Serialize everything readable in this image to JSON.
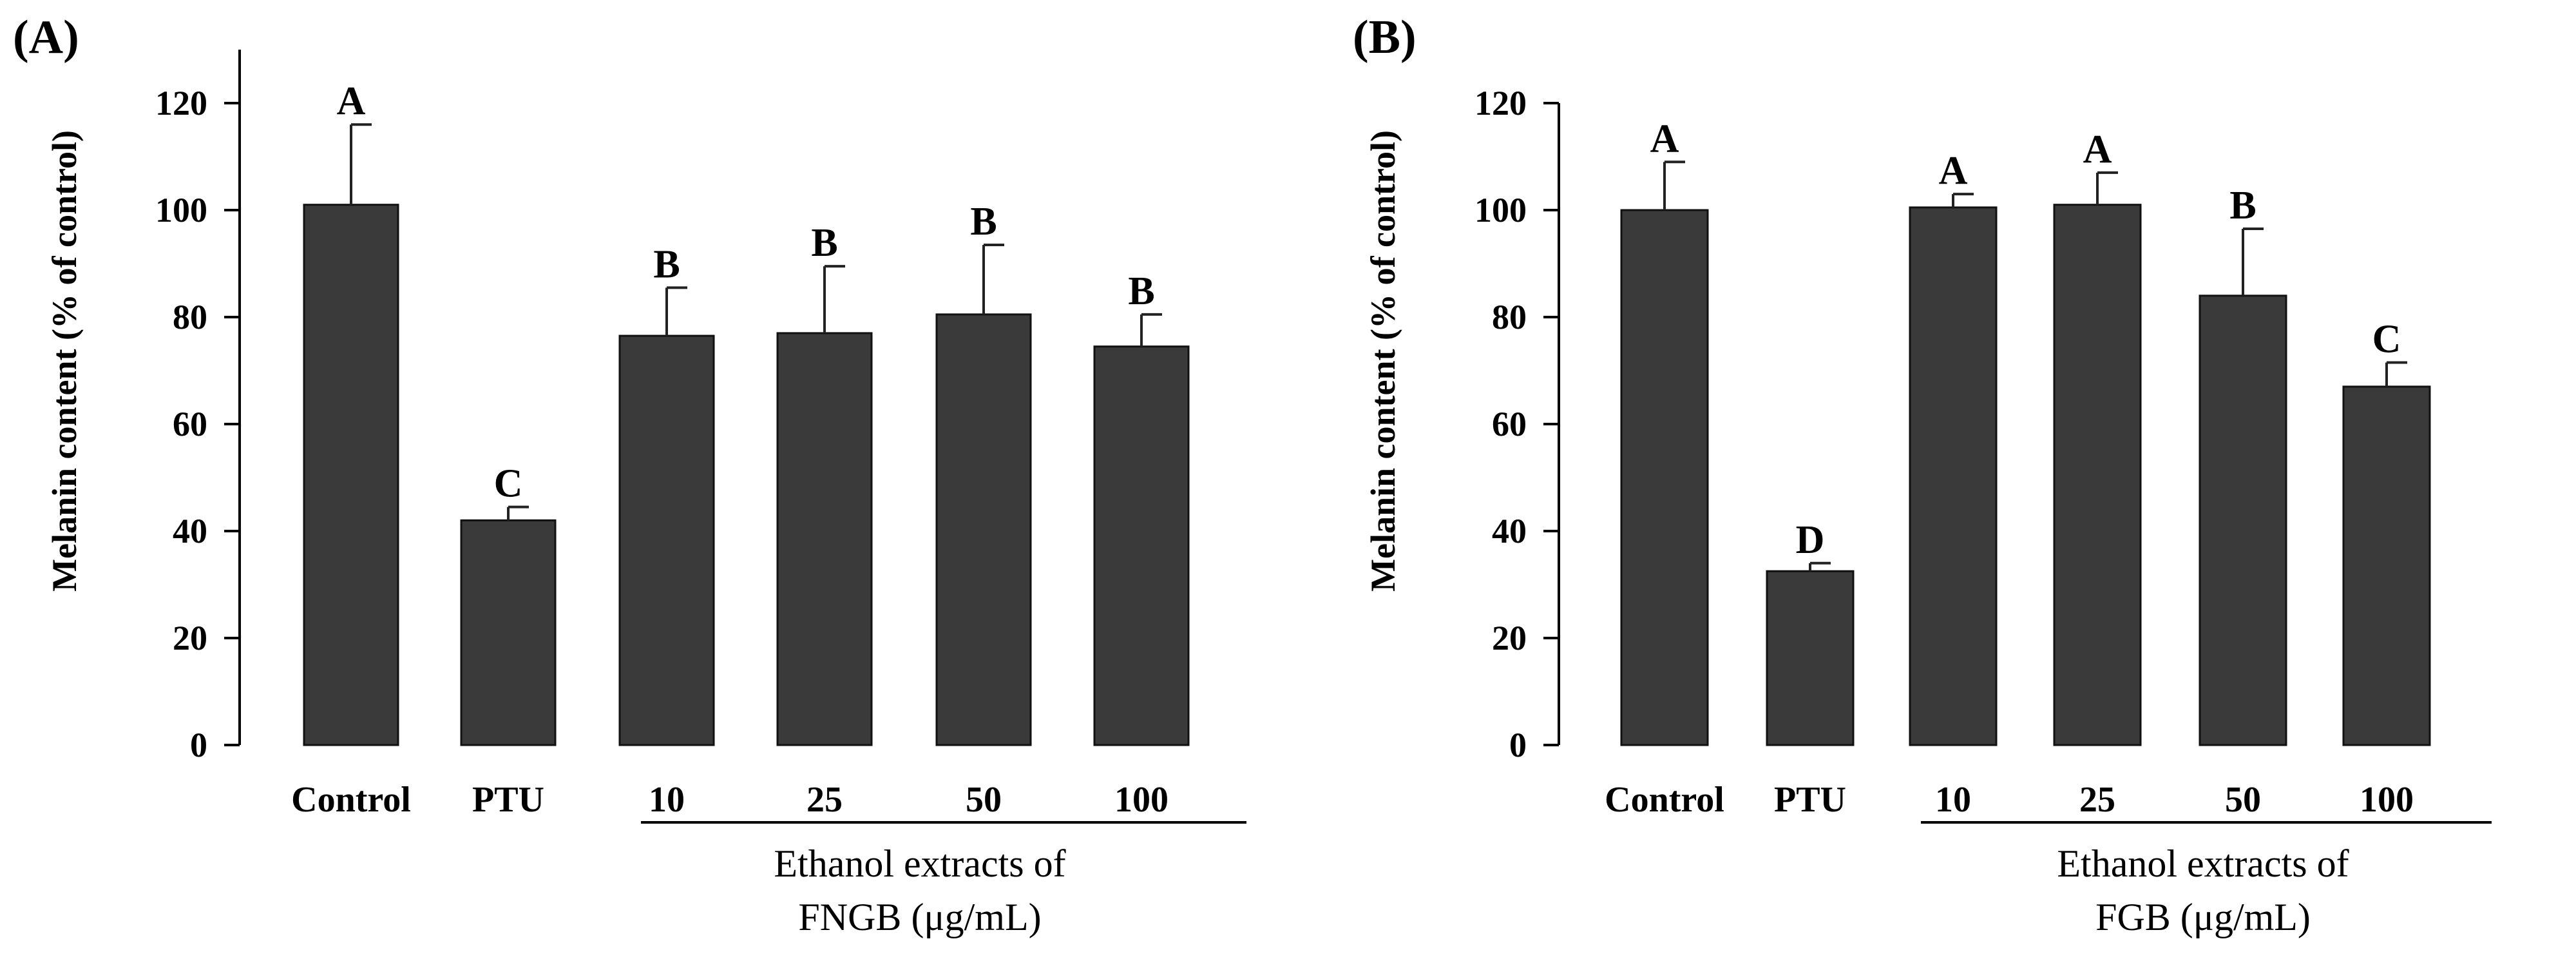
{
  "chart_data": [
    {
      "type": "bar",
      "panel_label": "(A)",
      "title": "",
      "ylabel": "Melanin content (% of control)",
      "ylim": [
        0,
        130
      ],
      "yticks": [
        0,
        20,
        40,
        60,
        80,
        100,
        120
      ],
      "categories": [
        "Control",
        "PTU",
        "10",
        "25",
        "50",
        "100"
      ],
      "values": [
        101,
        42,
        76.5,
        77,
        80.5,
        74.5
      ],
      "errors": [
        15,
        2.5,
        9,
        12.5,
        13,
        6
      ],
      "significance": [
        "A",
        "C",
        "B",
        "B",
        "B",
        "B"
      ],
      "group_label_line1": "Ethanol extracts of",
      "group_label_line2": "FNGB (μg/mL)",
      "bar_color": "#3a3a3a"
    },
    {
      "type": "bar",
      "panel_label": "(B)",
      "title": "",
      "ylabel": "Melanin content (% of control)",
      "ylim": [
        0,
        120
      ],
      "yticks": [
        0,
        20,
        40,
        60,
        80,
        100,
        120
      ],
      "categories": [
        "Control",
        "PTU",
        "10",
        "25",
        "50",
        "100"
      ],
      "values": [
        100,
        32.5,
        100.5,
        101,
        84,
        67
      ],
      "errors": [
        9,
        1.5,
        2.5,
        6,
        12.5,
        4.5
      ],
      "significance": [
        "A",
        "D",
        "A",
        "A",
        "B",
        "C"
      ],
      "group_label_line1": "Ethanol extracts of",
      "group_label_line2": "FGB (μg/mL)",
      "bar_color": "#3a3a3a"
    }
  ]
}
